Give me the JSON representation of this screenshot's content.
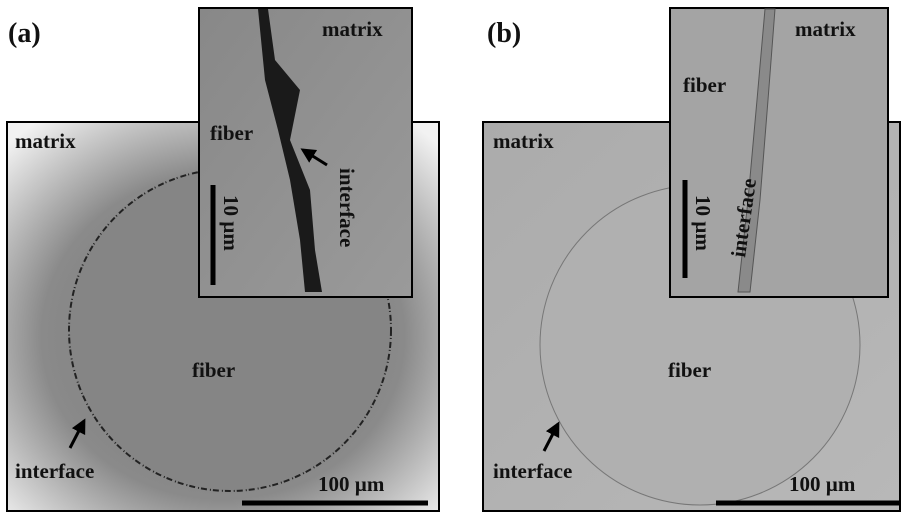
{
  "panels": [
    {
      "label": "(a)",
      "main": {
        "matrix": "matrix",
        "fiber": "fiber",
        "interface": "interface",
        "scale": "100 µm"
      },
      "inset": {
        "matrix": "matrix",
        "fiber": "fiber",
        "interface": "interface",
        "scale": "10 µm"
      }
    },
    {
      "label": "(b)",
      "main": {
        "matrix": "matrix",
        "fiber": "fiber",
        "interface": "interface",
        "scale": "100 µm"
      },
      "inset": {
        "matrix": "matrix",
        "fiber": "fiber",
        "interface": "interface",
        "scale": "10 µm"
      }
    }
  ]
}
